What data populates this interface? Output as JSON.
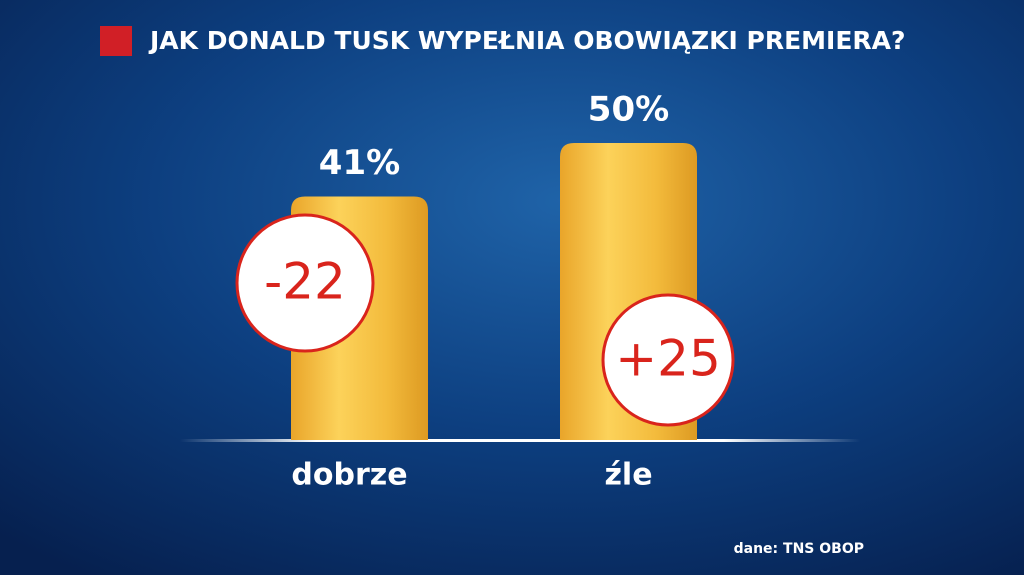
{
  "chart_data": {
    "type": "bar",
    "title": "JAK DONALD TUSK WYPEŁNIA OBOWIĄZKI PREMIERA?",
    "categories": [
      "dobrze",
      "źle"
    ],
    "values": [
      41,
      50
    ],
    "value_labels": [
      "41%",
      "50%"
    ],
    "changes": [
      -22,
      25
    ],
    "change_labels": [
      "-22",
      "+25"
    ],
    "color": "#f4b63a",
    "source": "dane: TNS OBOP"
  }
}
